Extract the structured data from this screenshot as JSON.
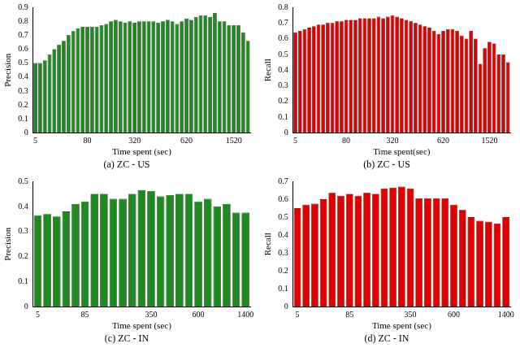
{
  "chart_data": [
    {
      "type": "bar",
      "title": "(a) ZC - US",
      "x_label": "Time spent (sec)",
      "y_label": "Precision",
      "color": "#1f8a1f",
      "categories": [
        "5",
        null,
        null,
        null,
        null,
        null,
        null,
        null,
        null,
        null,
        null,
        "80",
        null,
        null,
        null,
        null,
        null,
        null,
        null,
        null,
        null,
        "320",
        null,
        null,
        null,
        null,
        null,
        null,
        null,
        null,
        null,
        null,
        "620",
        null,
        null,
        null,
        null,
        null,
        null,
        null,
        null,
        null,
        "1520",
        null,
        null,
        null
      ],
      "values": [
        0.5,
        0.5,
        0.52,
        0.56,
        0.6,
        0.63,
        0.66,
        0.7,
        0.73,
        0.75,
        0.76,
        0.76,
        0.76,
        0.76,
        0.77,
        0.78,
        0.8,
        0.81,
        0.8,
        0.79,
        0.8,
        0.79,
        0.8,
        0.8,
        0.8,
        0.8,
        0.79,
        0.8,
        0.81,
        0.8,
        0.78,
        0.8,
        0.82,
        0.81,
        0.83,
        0.84,
        0.84,
        0.83,
        0.86,
        0.8,
        0.8,
        0.77,
        0.77,
        0.77,
        0.72,
        0.66
      ],
      "ylim": [
        0,
        0.9
      ],
      "yticks": [
        0,
        0.1,
        0.2,
        0.3,
        0.4,
        0.5,
        0.6,
        0.7,
        0.8,
        0.9
      ],
      "grid": false
    },
    {
      "type": "bar",
      "title": "(b) ZC - US",
      "x_label": "Time spent(sec)",
      "y_label": "Recall",
      "color": "#e00000",
      "categories": [
        "5",
        null,
        null,
        null,
        null,
        null,
        null,
        null,
        null,
        null,
        null,
        "80",
        null,
        null,
        null,
        null,
        null,
        null,
        null,
        null,
        null,
        "320",
        null,
        null,
        null,
        null,
        null,
        null,
        null,
        null,
        null,
        null,
        "620",
        null,
        null,
        null,
        null,
        null,
        null,
        null,
        null,
        null,
        "1520",
        null,
        null,
        null,
        null
      ],
      "values": [
        0.64,
        0.65,
        0.66,
        0.67,
        0.68,
        0.69,
        0.69,
        0.7,
        0.7,
        0.71,
        0.71,
        0.72,
        0.72,
        0.72,
        0.73,
        0.73,
        0.73,
        0.73,
        0.74,
        0.73,
        0.74,
        0.75,
        0.74,
        0.73,
        0.72,
        0.71,
        0.7,
        0.69,
        0.68,
        0.67,
        0.65,
        0.63,
        0.65,
        0.66,
        0.66,
        0.65,
        0.62,
        0.6,
        0.65,
        0.6,
        0.44,
        0.54,
        0.58,
        0.57,
        0.5,
        0.5,
        0.45
      ],
      "ylim": [
        0,
        0.8
      ],
      "yticks": [
        0,
        0.1,
        0.2,
        0.3,
        0.4,
        0.5,
        0.6,
        0.7,
        0.8
      ],
      "grid": false
    },
    {
      "type": "bar",
      "title": "(c) ZC - IN",
      "x_label": "Time spent (sec)",
      "y_label": "Precision",
      "color": "#1f8a1f",
      "categories": [
        "5",
        null,
        null,
        null,
        null,
        "85",
        null,
        null,
        null,
        null,
        null,
        null,
        "350",
        null,
        null,
        null,
        null,
        "600",
        null,
        null,
        null,
        null,
        "1400"
      ],
      "values": [
        0.365,
        0.37,
        0.36,
        0.38,
        0.41,
        0.42,
        0.45,
        0.45,
        0.43,
        0.43,
        0.45,
        0.465,
        0.46,
        0.44,
        0.445,
        0.45,
        0.45,
        0.42,
        0.43,
        0.4,
        0.41,
        0.375,
        0.375
      ],
      "ylim": [
        0,
        0.5
      ],
      "yticks": [
        0,
        0.1,
        0.2,
        0.3,
        0.4,
        0.5
      ],
      "grid": false
    },
    {
      "type": "bar",
      "title": "(d) ZC - IN",
      "x_label": "Time spent (sec)",
      "y_label": "Recall",
      "color": "#e00000",
      "categories": [
        "5",
        null,
        null,
        null,
        null,
        null,
        "85",
        null,
        null,
        null,
        null,
        null,
        null,
        "350",
        null,
        null,
        null,
        null,
        "600",
        null,
        null,
        null,
        null,
        null,
        "1400"
      ],
      "values": [
        0.55,
        0.57,
        0.575,
        0.6,
        0.635,
        0.62,
        0.63,
        0.62,
        0.635,
        0.63,
        0.66,
        0.665,
        0.67,
        0.66,
        0.605,
        0.605,
        0.605,
        0.605,
        0.57,
        0.54,
        0.5,
        0.48,
        0.475,
        0.465,
        0.5
      ],
      "ylim": [
        0,
        0.7
      ],
      "yticks": [
        0,
        0.1,
        0.2,
        0.3,
        0.4,
        0.5,
        0.6,
        0.7
      ],
      "grid": false
    }
  ]
}
